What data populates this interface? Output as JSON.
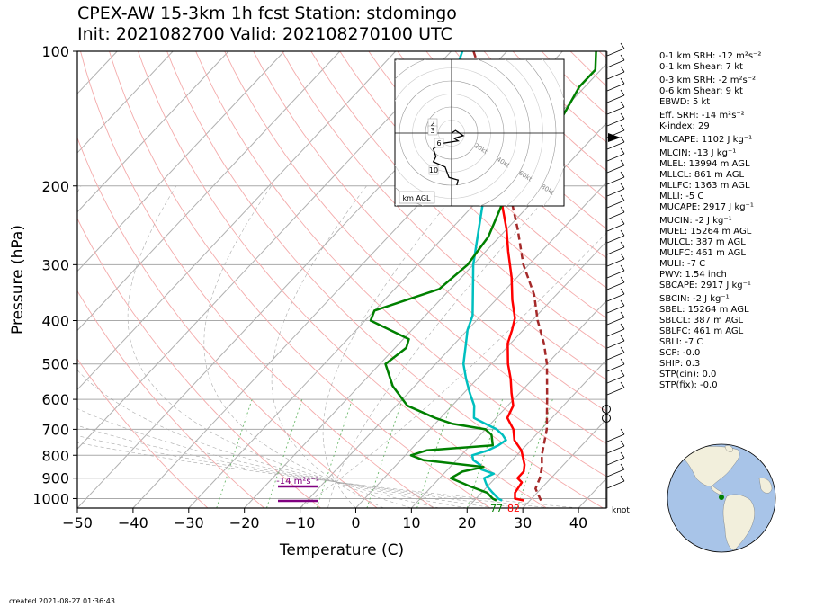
{
  "title_line1": "CPEX-AW 15-3km  1h fcst  Station: stdomingo",
  "title_line2": "Init: 2021082700  Valid: 202108270100 UTC",
  "created": "created 2021-08-27 01:36:43",
  "chart_data": {
    "type": "line",
    "subtype": "skew-T log-P",
    "xlabel": "Temperature (C)",
    "ylabel": "Pressure (hPa)",
    "xlim": [
      -50,
      45
    ],
    "ylim": [
      1050,
      100
    ],
    "x_ticks": [
      "−50",
      "−40",
      "−30",
      "−20",
      "−10",
      "0",
      "10",
      "20",
      "30",
      "40"
    ],
    "y_ticks": [
      "100",
      "200",
      "300",
      "400",
      "500",
      "600",
      "700",
      "800",
      "900",
      "1000"
    ],
    "y_scale": "log",
    "grid": true,
    "series": [
      {
        "color": "#ff0000",
        "points": [
          [
            1010,
            29
          ],
          [
            1000,
            27
          ],
          [
            970,
            26
          ],
          [
            920,
            25.5
          ],
          [
            900,
            24
          ],
          [
            870,
            24
          ],
          [
            840,
            23
          ],
          [
            780,
            20
          ],
          [
            740,
            17
          ],
          [
            700,
            15
          ],
          [
            660,
            12
          ],
          [
            620,
            11
          ],
          [
            580,
            8.5
          ],
          [
            540,
            6
          ],
          [
            500,
            3
          ],
          [
            450,
            -0.5
          ],
          [
            420,
            -2
          ],
          [
            395,
            -3.5
          ],
          [
            360,
            -7
          ],
          [
            320,
            -11
          ],
          [
            280,
            -16
          ],
          [
            250,
            -20
          ],
          [
            220,
            -25
          ],
          [
            200,
            -28
          ],
          [
            180,
            -32
          ],
          [
            160,
            -37
          ],
          [
            140,
            -44
          ],
          [
            120,
            -50
          ]
        ]
      },
      {
        "color": "#00bfbf",
        "points": [
          [
            1010,
            25
          ],
          [
            1000,
            24
          ],
          [
            970,
            22
          ],
          [
            940,
            20
          ],
          [
            920,
            19
          ],
          [
            900,
            18
          ],
          [
            880,
            19
          ],
          [
            860,
            16
          ],
          [
            840,
            15
          ],
          [
            820,
            13
          ],
          [
            800,
            12
          ],
          [
            780,
            14
          ],
          [
            760,
            15
          ],
          [
            740,
            15.5
          ],
          [
            720,
            14
          ],
          [
            700,
            12
          ],
          [
            680,
            9
          ],
          [
            660,
            6
          ],
          [
            640,
            5
          ],
          [
            620,
            4
          ],
          [
            580,
            1
          ],
          [
            540,
            -2
          ],
          [
            500,
            -5
          ],
          [
            450,
            -8
          ],
          [
            420,
            -10
          ],
          [
            390,
            -11.5
          ],
          [
            350,
            -15
          ],
          [
            300,
            -20
          ],
          [
            250,
            -25
          ],
          [
            220,
            -28.5
          ],
          [
            200,
            -31
          ],
          [
            180,
            -35
          ],
          [
            160,
            -40
          ],
          [
            140,
            -47
          ],
          [
            120,
            -53
          ],
          [
            110,
            -56
          ],
          [
            100,
            -58
          ]
        ]
      },
      {
        "color": "#008000",
        "points": [
          [
            1010,
            24
          ],
          [
            1000,
            23
          ],
          [
            970,
            21
          ],
          [
            940,
            17
          ],
          [
            900,
            12
          ],
          [
            870,
            13
          ],
          [
            850,
            16
          ],
          [
            820,
            4
          ],
          [
            800,
            1
          ],
          [
            780,
            3
          ],
          [
            760,
            14
          ],
          [
            720,
            12
          ],
          [
            700,
            10
          ],
          [
            680,
            3
          ],
          [
            660,
            -1
          ],
          [
            620,
            -8
          ],
          [
            560,
            -14
          ],
          [
            500,
            -19
          ],
          [
            460,
            -18
          ],
          [
            440,
            -19
          ],
          [
            400,
            -29
          ],
          [
            380,
            -30
          ],
          [
            340,
            -22
          ],
          [
            300,
            -21
          ],
          [
            260,
            -22
          ],
          [
            220,
            -25
          ],
          [
            200,
            -26
          ],
          [
            180,
            -30
          ],
          [
            160,
            -29
          ],
          [
            150,
            -29
          ],
          [
            140,
            -29
          ],
          [
            120,
            -31
          ],
          [
            110,
            -31
          ],
          [
            100,
            -34
          ]
        ]
      },
      {
        "color": "#a52a2a",
        "style": "dashed",
        "points": [
          [
            1010,
            32
          ],
          [
            950,
            29
          ],
          [
            900,
            28
          ],
          [
            850,
            26.5
          ],
          [
            800,
            24.5
          ],
          [
            700,
            21
          ],
          [
            600,
            16
          ],
          [
            500,
            10
          ],
          [
            450,
            6
          ],
          [
            400,
            1
          ],
          [
            350,
            -4
          ],
          [
            300,
            -11
          ],
          [
            250,
            -18
          ],
          [
            200,
            -27
          ],
          [
            150,
            -38
          ],
          [
            100,
            -56
          ]
        ]
      }
    ],
    "surface_labels": {
      "dewpoint": "77",
      "temperature": "82"
    },
    "srh_label": "-14 m²s⁻²",
    "wind_unit_label": "knot",
    "hodograph": {
      "height_labels": [
        "2",
        "3",
        "1",
        "6",
        "10"
      ],
      "speed_rings": [
        "20kt",
        "40kt",
        "60kt",
        "80kt"
      ],
      "legend": "km AGL",
      "points": [
        [
          0,
          0
        ],
        [
          3,
          2
        ],
        [
          9,
          -2
        ],
        [
          2,
          -4
        ],
        [
          5,
          -6
        ],
        [
          -8,
          -8
        ],
        [
          -14,
          -12
        ],
        [
          -12,
          -18
        ],
        [
          -14,
          -22
        ],
        [
          -5,
          -26
        ],
        [
          -2,
          -34
        ],
        [
          5,
          -36
        ],
        [
          4,
          -40
        ]
      ]
    }
  },
  "indices": [
    {
      "text": "0-1 km SRH: -12 m²s⁻²",
      "gap": false
    },
    {
      "text": "0-1 km Shear: 7 kt",
      "gap": false
    },
    {
      "text": "0-3 km SRH: -2 m²s⁻²",
      "gap": true
    },
    {
      "text": "0-6 km Shear: 9 kt",
      "gap": false
    },
    {
      "text": "EBWD: 5 kt",
      "gap": false
    },
    {
      "text": "Eff. SRH: -14 m²s⁻²",
      "gap": true
    },
    {
      "text": "K-index: 29",
      "gap": false
    },
    {
      "text": "MLCAPE: 1102 J kg⁻¹",
      "gap": true
    },
    {
      "text": "MLCIN: -13 J kg⁻¹",
      "gap": true
    },
    {
      "text": "MLEL: 13994 m AGL",
      "gap": false
    },
    {
      "text": "MLLCL: 861 m AGL",
      "gap": false
    },
    {
      "text": "MLLFC: 1363 m AGL",
      "gap": false
    },
    {
      "text": "MLLI: -5 C",
      "gap": false
    },
    {
      "text": "MUCAPE: 2917 J kg⁻¹",
      "gap": false
    },
    {
      "text": "MUCIN: -2 J kg⁻¹",
      "gap": true
    },
    {
      "text": "MUEL: 15264 m AGL",
      "gap": false
    },
    {
      "text": "MULCL: 387 m AGL",
      "gap": false
    },
    {
      "text": "MULFC: 461 m AGL",
      "gap": false
    },
    {
      "text": "MULI: -7 C",
      "gap": false
    },
    {
      "text": "PWV: 1.54 inch",
      "gap": false
    },
    {
      "text": "SBCAPE: 2917 J kg⁻¹",
      "gap": false
    },
    {
      "text": "SBCIN: -2 J kg⁻¹",
      "gap": true
    },
    {
      "text": "SBEL: 15264 m AGL",
      "gap": false
    },
    {
      "text": "SBLCL: 387 m AGL",
      "gap": false
    },
    {
      "text": "SBLFC: 461 m AGL",
      "gap": false
    },
    {
      "text": "SBLI: -7 C",
      "gap": false
    },
    {
      "text": "SCP: -0.0",
      "gap": false
    },
    {
      "text": "SHIP: 0.3",
      "gap": false
    },
    {
      "text": "STP(cin): 0.0",
      "gap": false
    },
    {
      "text": "STP(fix): -0.0",
      "gap": false
    }
  ],
  "colors": {
    "temperature": "#ff0000",
    "dewpoint": "#008000",
    "wetbulb": "#00bfbf",
    "parcel": "#a52a2a",
    "srh": "#800080",
    "ocean": "#a8c4e8",
    "land": "#f2efdc"
  }
}
